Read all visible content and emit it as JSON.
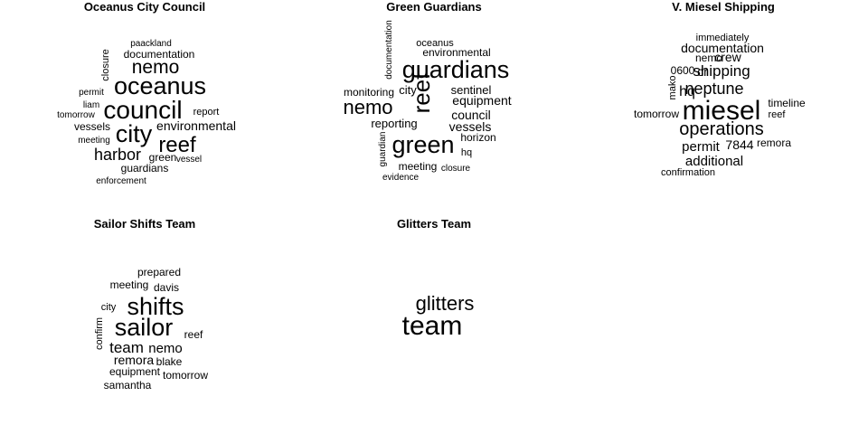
{
  "chart_data": [
    {
      "type": "wordcloud",
      "title": "Oceanus City Council",
      "words": [
        {
          "text": "paackland",
          "weight": 1
        },
        {
          "text": "documentation",
          "weight": 2
        },
        {
          "text": "closure",
          "weight": 1
        },
        {
          "text": "nemo",
          "weight": 4
        },
        {
          "text": "oceanus",
          "weight": 6
        },
        {
          "text": "permit",
          "weight": 1
        },
        {
          "text": "liam",
          "weight": 1
        },
        {
          "text": "council",
          "weight": 7
        },
        {
          "text": "report",
          "weight": 1
        },
        {
          "text": "tomorrow",
          "weight": 1
        },
        {
          "text": "environmental",
          "weight": 2
        },
        {
          "text": "vessels",
          "weight": 2
        },
        {
          "text": "city",
          "weight": 6
        },
        {
          "text": "meeting",
          "weight": 1
        },
        {
          "text": "reef",
          "weight": 5
        },
        {
          "text": "harbor",
          "weight": 4
        },
        {
          "text": "green",
          "weight": 2
        },
        {
          "text": "vessel",
          "weight": 1
        },
        {
          "text": "guardians",
          "weight": 2
        },
        {
          "text": "enforcement",
          "weight": 1
        }
      ]
    },
    {
      "type": "wordcloud",
      "title": "Green Guardians",
      "words": [
        {
          "text": "documentation",
          "weight": 1
        },
        {
          "text": "oceanus",
          "weight": 1
        },
        {
          "text": "environmental",
          "weight": 2
        },
        {
          "text": "guardians",
          "weight": 7
        },
        {
          "text": "monitoring",
          "weight": 2
        },
        {
          "text": "city",
          "weight": 2
        },
        {
          "text": "sentinel",
          "weight": 2
        },
        {
          "text": "reef",
          "weight": 7
        },
        {
          "text": "equipment",
          "weight": 3
        },
        {
          "text": "nemo",
          "weight": 5
        },
        {
          "text": "council",
          "weight": 3
        },
        {
          "text": "reporting",
          "weight": 2
        },
        {
          "text": "vessels",
          "weight": 3
        },
        {
          "text": "guardian",
          "weight": 1
        },
        {
          "text": "green",
          "weight": 7
        },
        {
          "text": "horizon",
          "weight": 2
        },
        {
          "text": "hq",
          "weight": 1
        },
        {
          "text": "meeting",
          "weight": 2
        },
        {
          "text": "closure",
          "weight": 1
        },
        {
          "text": "evidence",
          "weight": 1
        }
      ]
    },
    {
      "type": "wordcloud",
      "title": "V. Miesel Shipping",
      "words": [
        {
          "text": "immediately",
          "weight": 1
        },
        {
          "text": "documentation",
          "weight": 2
        },
        {
          "text": "nemo",
          "weight": 1
        },
        {
          "text": "crew",
          "weight": 2
        },
        {
          "text": "0600",
          "weight": 2
        },
        {
          "text": "cr",
          "weight": 2
        },
        {
          "text": "shipping",
          "weight": 3
        },
        {
          "text": "mako",
          "weight": 1
        },
        {
          "text": "hq",
          "weight": 3
        },
        {
          "text": "neptune",
          "weight": 4
        },
        {
          "text": "timeline",
          "weight": 2
        },
        {
          "text": "tomorrow",
          "weight": 2
        },
        {
          "text": "miesel",
          "weight": 7
        },
        {
          "text": "reef",
          "weight": 2
        },
        {
          "text": "operations",
          "weight": 5
        },
        {
          "text": "permit",
          "weight": 3
        },
        {
          "text": "7844",
          "weight": 2
        },
        {
          "text": "remora",
          "weight": 2
        },
        {
          "text": "additional",
          "weight": 3
        },
        {
          "text": "confirmation",
          "weight": 1
        }
      ]
    },
    {
      "type": "wordcloud",
      "title": "Sailor Shifts Team",
      "words": [
        {
          "text": "prepared",
          "weight": 2
        },
        {
          "text": "meeting",
          "weight": 2
        },
        {
          "text": "davis",
          "weight": 2
        },
        {
          "text": "city",
          "weight": 2
        },
        {
          "text": "shifts",
          "weight": 7
        },
        {
          "text": "sailor",
          "weight": 7
        },
        {
          "text": "confirm",
          "weight": 1
        },
        {
          "text": "reef",
          "weight": 2
        },
        {
          "text": "team",
          "weight": 4
        },
        {
          "text": "nemo",
          "weight": 3
        },
        {
          "text": "remora",
          "weight": 3
        },
        {
          "text": "blake",
          "weight": 2
        },
        {
          "text": "equipment",
          "weight": 2
        },
        {
          "text": "tomorrow",
          "weight": 2
        },
        {
          "text": "samantha",
          "weight": 2
        }
      ]
    },
    {
      "type": "wordcloud",
      "title": "Glitters Team",
      "words": [
        {
          "text": "glitters",
          "weight": 5
        },
        {
          "text": "team",
          "weight": 7
        }
      ]
    }
  ]
}
